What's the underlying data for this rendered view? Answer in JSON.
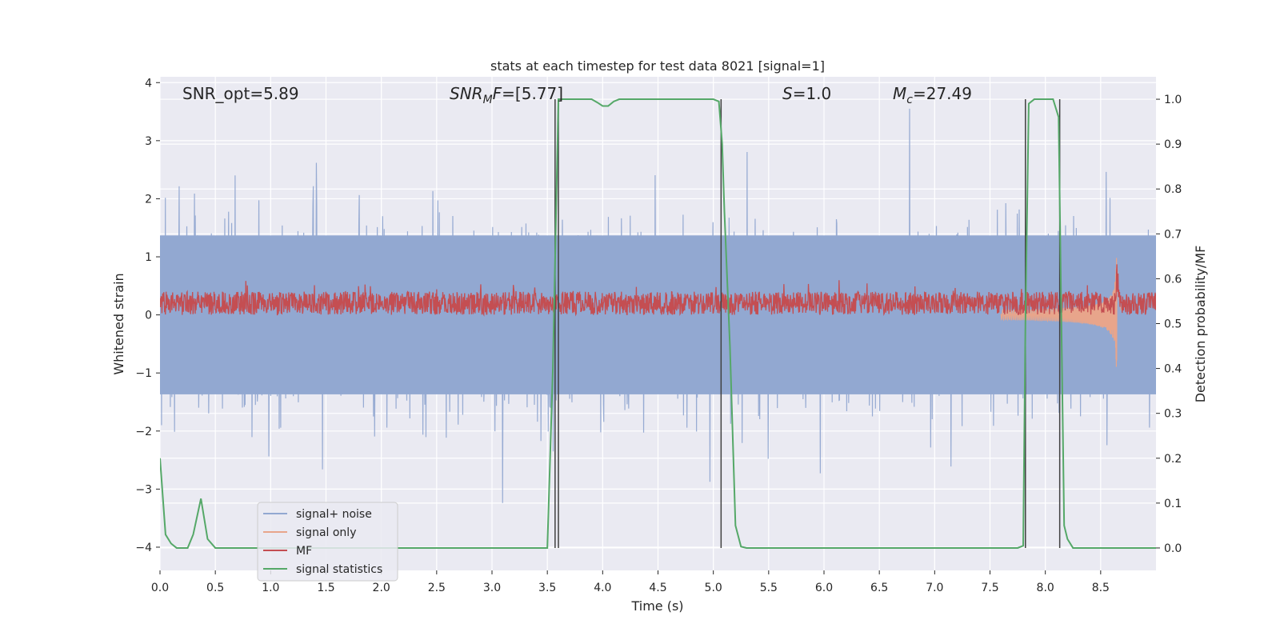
{
  "chart_data": {
    "type": "line",
    "title": "stats at each timestep for test data 8021 [signal=1]",
    "xlabel": "Time (s)",
    "ylabel_left": "Whitened strain",
    "ylabel_right": "Detection probability/MF",
    "xlim": [
      0.0,
      9.0
    ],
    "ylim_left": [
      -4.4,
      4.1
    ],
    "ylim_right": [
      -0.05,
      1.05
    ],
    "xticks": [
      "0.0",
      "0.5",
      "1.0",
      "1.5",
      "2.0",
      "2.5",
      "3.0",
      "3.5",
      "4.0",
      "4.5",
      "5.0",
      "5.5",
      "6.0",
      "6.5",
      "7.0",
      "7.5",
      "8.0",
      "8.5"
    ],
    "yticks_left": [
      "4",
      "3",
      "2",
      "1",
      "0",
      "−1",
      "−2",
      "−3",
      "−4"
    ],
    "yticks_right": [
      "1.0",
      "0.9",
      "0.8",
      "0.7",
      "0.6",
      "0.5",
      "0.4",
      "0.3",
      "0.2",
      "0.1",
      "0.0"
    ],
    "grid": true,
    "legend_position": "lower-left",
    "annotations": {
      "snr_opt": "SNR_opt=5.89",
      "snr_mf": "SNR_MF=[5.77]",
      "s_value": "S=1.0",
      "mc_value": "M_c=27.49"
    },
    "series": [
      {
        "name": "signal+ noise",
        "color": "#92a8d1",
        "axis": "left",
        "kind": "noise",
        "typical_range": [
          -1.9,
          1.9
        ],
        "peak_range": [
          -3.9,
          3.8
        ]
      },
      {
        "name": "signal only",
        "color": "#e8a58b",
        "axis": "left",
        "kind": "chirp",
        "onset": 7.6,
        "merger": 8.65,
        "peak_amplitude": 1.3
      },
      {
        "name": "MF",
        "color": "#c44e52",
        "axis": "left",
        "kind": "band",
        "center": 0.2,
        "half_width": 0.2
      },
      {
        "name": "signal statistics",
        "color": "#55a868",
        "axis": "right",
        "x": [
          0.0,
          0.05,
          0.1,
          0.15,
          0.25,
          0.3,
          0.37,
          0.43,
          0.5,
          0.6,
          1.0,
          2.0,
          3.0,
          3.5,
          3.55,
          3.6,
          3.65,
          3.7,
          3.9,
          3.95,
          4.0,
          4.05,
          4.1,
          4.15,
          4.5,
          5.0,
          5.05,
          5.08,
          5.1,
          5.15,
          5.2,
          5.25,
          5.3,
          6.0,
          7.0,
          7.75,
          7.8,
          7.82,
          7.85,
          7.9,
          8.0,
          8.07,
          8.12,
          8.17,
          8.2,
          8.25,
          8.5,
          9.0
        ],
        "y": [
          0.2,
          0.03,
          0.01,
          0.0,
          0.0,
          0.03,
          0.11,
          0.02,
          0.0,
          0.0,
          0.0,
          0.0,
          0.0,
          0.0,
          0.4,
          1.0,
          1.0,
          1.0,
          1.0,
          0.993,
          0.985,
          0.985,
          0.995,
          1.0,
          1.0,
          1.0,
          0.995,
          0.9,
          0.75,
          0.45,
          0.05,
          0.003,
          0.0,
          0.0,
          0.0,
          0.0,
          0.005,
          0.5,
          0.99,
          1.0,
          1.0,
          1.0,
          0.96,
          0.05,
          0.02,
          0.0,
          0.0,
          0.0
        ]
      }
    ],
    "vertical_markers": [
      3.57,
      3.6,
      5.07,
      7.82,
      8.13
    ]
  }
}
